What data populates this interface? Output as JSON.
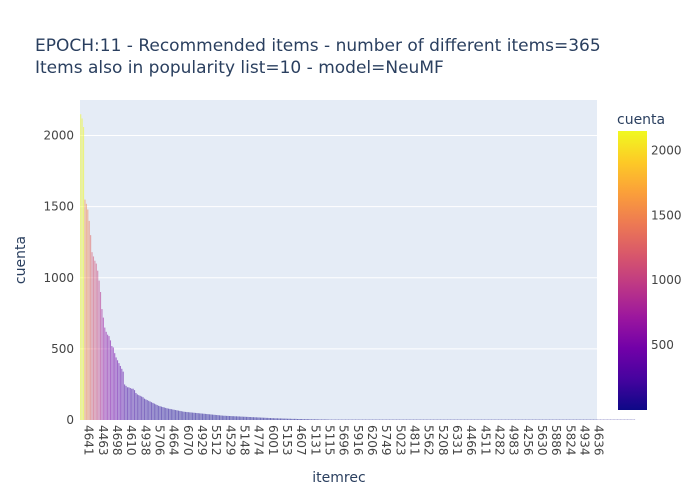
{
  "chart_data": {
    "type": "bar",
    "title_lines": [
      "EPOCH:11 - Recommended items - number of different items=365",
      "Items also in popularity list=10 - model=NeuMF"
    ],
    "xlabel": "itemrec",
    "ylabel": "cuenta",
    "ylim": [
      0,
      2250
    ],
    "y_ticks": [
      0,
      500,
      1000,
      1500,
      2000
    ],
    "x_tick_labels": [
      "4641",
      "4463",
      "4698",
      "4610",
      "4938",
      "5706",
      "4664",
      "6070",
      "4929",
      "5512",
      "4529",
      "5148",
      "4774",
      "6001",
      "5153",
      "4607",
      "5131",
      "5115",
      "5696",
      "5916",
      "6206",
      "5749",
      "5023",
      "4811",
      "5562",
      "5208",
      "6331",
      "4466",
      "4511",
      "4282",
      "4983",
      "4256",
      "5630",
      "5886",
      "5824",
      "4934",
      "4636"
    ],
    "n_items": 365,
    "highlight_count": 10,
    "colorbar": {
      "title": "cuenta",
      "ticks": [
        500,
        1000,
        1500,
        2000
      ],
      "range": [
        0,
        2150
      ],
      "colors": [
        "#0d0887",
        "#46039f",
        "#7201a8",
        "#9c179e",
        "#bd3786",
        "#d8576b",
        "#ed7953",
        "#fb9f3a",
        "#fdca26",
        "#f0f921"
      ]
    },
    "values": [
      2150,
      2120,
      2060,
      1550,
      1520,
      1480,
      1400,
      1300,
      1180,
      1150,
      1120,
      1100,
      1050,
      980,
      900,
      780,
      720,
      650,
      620,
      600,
      590,
      560,
      520,
      510,
      470,
      440,
      420,
      400,
      380,
      360,
      340,
      250,
      240,
      230,
      230,
      225,
      220,
      220,
      210,
      190,
      180,
      175,
      170,
      165,
      160,
      150,
      145,
      140,
      135,
      130,
      125,
      120,
      115,
      110,
      105,
      100,
      97,
      94,
      91,
      88,
      85,
      82,
      80,
      78,
      76,
      74,
      72,
      70,
      68,
      66,
      64,
      62,
      60,
      58,
      57,
      56,
      55,
      54,
      53,
      52,
      51,
      50,
      49,
      48,
      47,
      46,
      45,
      44,
      43,
      42,
      41,
      40,
      39,
      38,
      37,
      36,
      35,
      34,
      33,
      32,
      31,
      30,
      30,
      29,
      29,
      28,
      28,
      27,
      27,
      26,
      26,
      25,
      25,
      24,
      24,
      23,
      23,
      22,
      22,
      21,
      21,
      20,
      20,
      19,
      19,
      18,
      18,
      17,
      17,
      16,
      16,
      15,
      15,
      14,
      14,
      13,
      13,
      12,
      12,
      12,
      11,
      11,
      11,
      10,
      10,
      10,
      9,
      9,
      9,
      8,
      8,
      8,
      8,
      7,
      7,
      7,
      7,
      6,
      6,
      6,
      6,
      6,
      5,
      5,
      5,
      5,
      5,
      5,
      4,
      4,
      4,
      4,
      4,
      4,
      4,
      3,
      3,
      3,
      3,
      3,
      3,
      3,
      3,
      3,
      3,
      3,
      3,
      3,
      3,
      3,
      3,
      3,
      3,
      3,
      3,
      3,
      3,
      3,
      3,
      3,
      3,
      3,
      3,
      3,
      3,
      3,
      3,
      3,
      3,
      3,
      3,
      3,
      3,
      3,
      3,
      3,
      3,
      3,
      3,
      3,
      3,
      3,
      3,
      3,
      3,
      3,
      3,
      3,
      3,
      3,
      3,
      3,
      3,
      3,
      3,
      3,
      3,
      3,
      3,
      3,
      3,
      3,
      3,
      3,
      3,
      3,
      3,
      3,
      3,
      3,
      3,
      3,
      3,
      3,
      3,
      3,
      3,
      3,
      3,
      3,
      3,
      3,
      3,
      3,
      3,
      3,
      3,
      3,
      3,
      3,
      3,
      3,
      3,
      3,
      3,
      3,
      3,
      3,
      3,
      3,
      3,
      3,
      3,
      3,
      3,
      3,
      3,
      3,
      3,
      3,
      3,
      3,
      3,
      3,
      3,
      3,
      3,
      3,
      3,
      3,
      3,
      3,
      3,
      3,
      3,
      3,
      3,
      3,
      3,
      3,
      3,
      3,
      3,
      3,
      3,
      3,
      3,
      3,
      3,
      3,
      3,
      3,
      3,
      3,
      3,
      3,
      3,
      3,
      3,
      3,
      3,
      3,
      3,
      3,
      3,
      3,
      3,
      3,
      3,
      3,
      3,
      3,
      3,
      3,
      3,
      3,
      3,
      3,
      3,
      3,
      3,
      3,
      3,
      3,
      3,
      3,
      3,
      3,
      3,
      3,
      3,
      3,
      3,
      3,
      3,
      3,
      3,
      3,
      3,
      3,
      3,
      3,
      3,
      3,
      3,
      3,
      3,
      3,
      3,
      3,
      3,
      3,
      3,
      3,
      3,
      3,
      3,
      3,
      3,
      3,
      3,
      3
    ],
    "plot_bg": "#e5ecf6",
    "grid_color": "#ffffff",
    "text_color": "#2a3f5f",
    "axis_text_color": "#444444",
    "highlight_color": "#f0f921"
  }
}
